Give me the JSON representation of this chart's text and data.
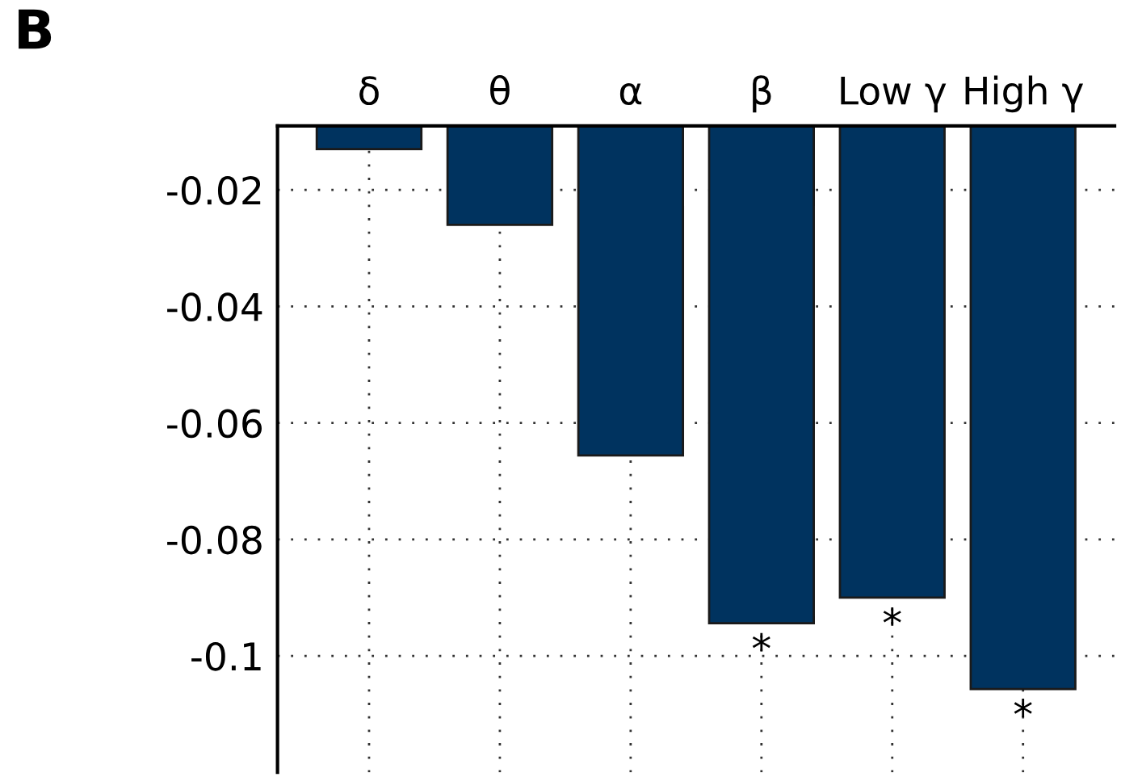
{
  "chart_data": {
    "type": "bar",
    "title": "B",
    "categories": [
      "δ",
      "θ",
      "α",
      "β",
      "Low γ",
      "High γ"
    ],
    "values": [
      -0.013,
      -0.026,
      -0.0656,
      -0.0944,
      -0.09,
      -0.1057
    ],
    "color": "#00335f",
    "ylim": [
      -0.12,
      -0.009
    ],
    "yticks": [
      -0.02,
      -0.04,
      -0.06,
      -0.08,
      {
        "value": -0.1,
        "label": "-0.1"
      }
    ],
    "grid": true,
    "annotations": [
      {
        "text": "*",
        "x": "β",
        "y": -0.0944
      },
      {
        "text": "*",
        "x": "Low γ",
        "y": -0.09
      },
      {
        "text": "*",
        "x": "High γ",
        "y": -0.1057
      }
    ]
  }
}
